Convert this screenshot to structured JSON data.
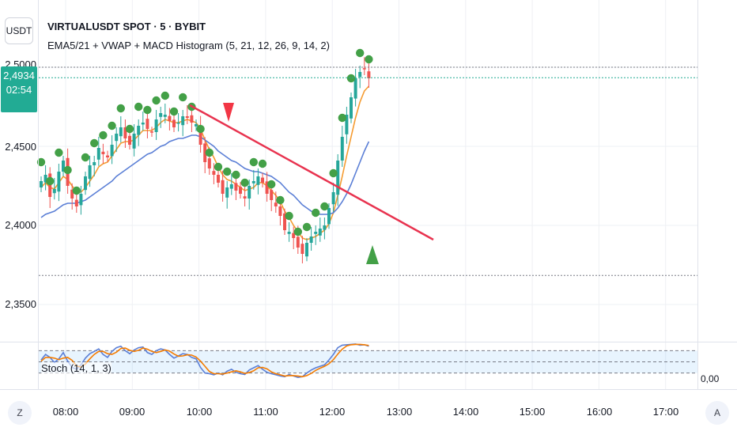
{
  "header": {
    "symbol": "VIRTUALUSDT SPOT · 5 · BYBIT",
    "indicator": "EMA5/21 + VWAP + MACD Histogram (5, 21, 12, 26, 9, 14, 2)",
    "currency_button": "USDT"
  },
  "price_badge": {
    "price": "2,4934",
    "countdown": "02:54"
  },
  "stoch": {
    "label": "Stoch (14, 1, 3)",
    "scale_label": "0,00"
  },
  "bottom_bar": {
    "left_button": "Z",
    "right_button": "A"
  },
  "colors": {
    "up": "#26a69a",
    "down": "#ef5350",
    "ema_fast": "#f59b30",
    "ema_slow": "#5b7fd6",
    "dots": "#43a047",
    "trendline": "#e8334f",
    "sell_marker": "#f23645",
    "buy_marker": "#43a047",
    "stoch_k": "#5b7fd6",
    "stoch_d": "#f57c00",
    "badge": "#22ab94"
  },
  "chart_data": [
    {
      "type": "line",
      "title": "VIRTUALUSDT SPOT · 5 · BYBIT",
      "y_ticks": [
        "2,5000",
        "2,4500",
        "2,4000",
        "2,3500"
      ],
      "x_ticks": [
        "08:00",
        "09:00",
        "10:00",
        "11:00",
        "12:00",
        "13:00",
        "14:00",
        "15:00",
        "16:00",
        "17:00"
      ],
      "ylim": [
        2.33,
        2.51
      ],
      "candles_close": [
        2.428,
        2.432,
        2.418,
        2.423,
        2.434,
        2.441,
        2.425,
        2.417,
        2.412,
        2.42,
        2.431,
        2.438,
        2.44,
        2.449,
        2.445,
        2.443,
        2.451,
        2.458,
        2.462,
        2.455,
        2.451,
        2.458,
        2.463,
        2.465,
        2.461,
        2.459,
        2.467,
        2.471,
        2.47,
        2.466,
        2.462,
        2.465,
        2.469,
        2.468,
        2.465,
        2.464,
        2.451,
        2.44,
        2.436,
        2.432,
        2.427,
        2.42,
        2.424,
        2.426,
        2.422,
        2.42,
        2.417,
        2.425,
        2.428,
        2.431,
        2.427,
        2.42,
        2.416,
        2.412,
        2.406,
        2.397,
        2.396,
        2.392,
        2.386,
        2.382,
        2.389,
        2.393,
        2.396,
        2.398,
        2.4,
        2.411,
        2.421,
        2.441,
        2.456,
        2.47,
        2.481,
        2.493,
        2.497,
        2.499,
        2.493
      ],
      "series": [
        {
          "name": "EMA5",
          "values": [
            2.424,
            2.427,
            2.424,
            2.423,
            2.427,
            2.431,
            2.429,
            2.425,
            2.421,
            2.421,
            2.424,
            2.428,
            2.432,
            2.437,
            2.439,
            2.44,
            2.444,
            2.448,
            2.452,
            2.453,
            2.453,
            2.454,
            2.457,
            2.46,
            2.46,
            2.46,
            2.462,
            2.465,
            2.467,
            2.466,
            2.465,
            2.465,
            2.466,
            2.467,
            2.466,
            2.465,
            2.461,
            2.454,
            2.448,
            2.443,
            2.437,
            2.432,
            2.429,
            2.428,
            2.426,
            2.424,
            2.422,
            2.423,
            2.424,
            2.427,
            2.427,
            2.425,
            2.422,
            2.419,
            2.415,
            2.409,
            2.405,
            2.4,
            2.396,
            2.392,
            2.391,
            2.392,
            2.393,
            2.395,
            2.397,
            2.401,
            2.408,
            2.419,
            2.431,
            2.444,
            2.456,
            2.468,
            2.478,
            2.485,
            2.488
          ]
        },
        {
          "name": "EMA21",
          "values": [
            2.405,
            2.407,
            2.408,
            2.409,
            2.411,
            2.413,
            2.414,
            2.414,
            2.414,
            2.415,
            2.416,
            2.418,
            2.42,
            2.422,
            2.424,
            2.426,
            2.428,
            2.431,
            2.433,
            2.435,
            2.437,
            2.439,
            2.441,
            2.443,
            2.445,
            2.446,
            2.448,
            2.45,
            2.451,
            2.453,
            2.454,
            2.455,
            2.455,
            2.456,
            2.457,
            2.457,
            2.456,
            2.454,
            2.452,
            2.45,
            2.447,
            2.445,
            2.443,
            2.441,
            2.44,
            2.438,
            2.436,
            2.435,
            2.434,
            2.434,
            2.433,
            2.432,
            2.431,
            2.429,
            2.427,
            2.424,
            2.421,
            2.419,
            2.416,
            2.413,
            2.411,
            2.409,
            2.408,
            2.407,
            2.407,
            2.407,
            2.408,
            2.411,
            2.415,
            2.42,
            2.426,
            2.433,
            2.44,
            2.447,
            2.453
          ]
        }
      ]
    },
    {
      "type": "line",
      "title": "Stoch (14, 1, 3)",
      "ylim": [
        0,
        100
      ],
      "series": [
        {
          "name": "%K",
          "values": [
            55,
            70,
            62,
            48,
            58,
            75,
            52,
            35,
            30,
            42,
            60,
            72,
            78,
            85,
            70,
            62,
            78,
            88,
            92,
            80,
            72,
            82,
            88,
            90,
            75,
            70,
            80,
            85,
            82,
            70,
            60,
            66,
            72,
            70,
            62,
            58,
            35,
            20,
            18,
            15,
            20,
            15,
            25,
            30,
            22,
            18,
            16,
            28,
            34,
            40,
            30,
            22,
            18,
            15,
            12,
            10,
            16,
            12,
            8,
            10,
            20,
            28,
            34,
            38,
            42,
            55,
            70,
            88,
            95,
            96,
            97,
            98,
            95,
            96,
            92
          ]
        },
        {
          "name": "%D",
          "values": [
            52,
            62,
            62,
            60,
            56,
            60,
            62,
            54,
            39,
            36,
            44,
            58,
            70,
            78,
            78,
            72,
            70,
            76,
            86,
            87,
            81,
            78,
            81,
            87,
            84,
            78,
            75,
            78,
            82,
            79,
            71,
            65,
            66,
            69,
            68,
            63,
            52,
            38,
            24,
            18,
            18,
            17,
            20,
            23,
            26,
            23,
            19,
            21,
            26,
            34,
            35,
            31,
            23,
            18,
            15,
            12,
            13,
            13,
            12,
            10,
            13,
            19,
            27,
            33,
            38,
            45,
            56,
            71,
            84,
            93,
            96,
            97,
            97,
            96,
            94
          ]
        }
      ]
    }
  ]
}
